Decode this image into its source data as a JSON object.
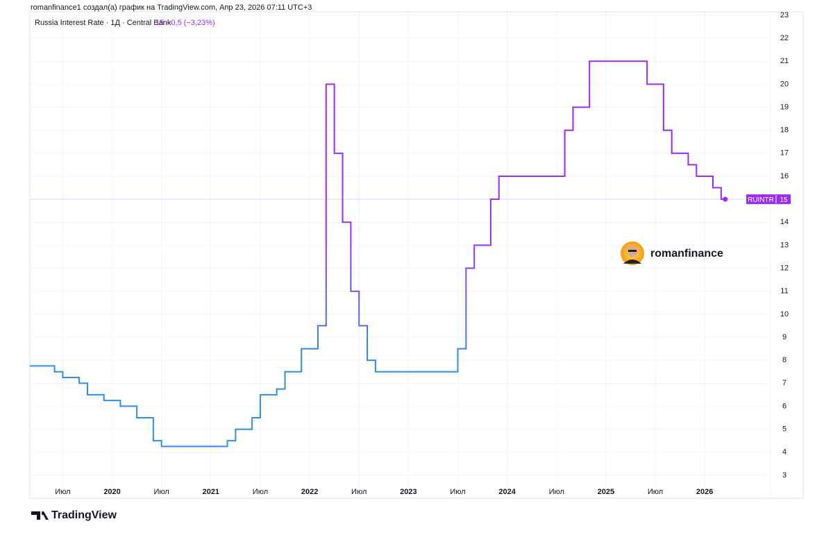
{
  "attribution": "romanfinance1 создал(а) график на TradingView.com, Апр 23, 2026 07:11 UTC+3",
  "watermark": "romanfinance",
  "brand": "TradingView",
  "chart_data": {
    "type": "line",
    "step": true,
    "title": "Russia Interest Rate · 1Д · Central Bank",
    "change_label": "−0,5 (−3,23%)",
    "symbol": "RUINTR",
    "x": [
      "2019-03",
      "2019-06",
      "2019-07",
      "2019-09",
      "2019-10",
      "2019-12",
      "2020-02",
      "2020-04",
      "2020-06",
      "2020-07",
      "2021-03",
      "2021-04",
      "2021-06",
      "2021-07",
      "2021-09",
      "2021-10",
      "2021-12",
      "2022-02",
      "2022-03",
      "2022-04",
      "2022-05",
      "2022-06",
      "2022-07",
      "2022-08",
      "2022-09",
      "2023-07",
      "2023-08",
      "2023-09",
      "2023-11",
      "2023-12",
      "2024-08",
      "2024-09",
      "2024-11",
      "2025-06",
      "2025-08",
      "2025-09",
      "2025-11",
      "2025-12",
      "2026-02",
      "2026-03"
    ],
    "series": [
      {
        "name": "RUINTR",
        "color": "#9c2cf0",
        "gradient_from": "#2a8fe8",
        "values": [
          7.75,
          7.5,
          7.25,
          7,
          6.5,
          6.25,
          6,
          5.5,
          4.5,
          4.25,
          4.5,
          5,
          5.5,
          6.5,
          6.75,
          7.5,
          8.5,
          9.5,
          20,
          17,
          14,
          11,
          9.5,
          8,
          7.5,
          8.5,
          12,
          13,
          15,
          16,
          18,
          19,
          21,
          20,
          18,
          17,
          16.5,
          16,
          15.5,
          15
        ]
      }
    ],
    "xlim": [
      "2019-03",
      "2026-09"
    ],
    "xticks": [
      {
        "value": "2019-07",
        "label": "Июл"
      },
      {
        "value": "2020-01",
        "label": "2020"
      },
      {
        "value": "2020-07",
        "label": "Июл"
      },
      {
        "value": "2021-01",
        "label": "2021"
      },
      {
        "value": "2021-07",
        "label": "Июл"
      },
      {
        "value": "2022-01",
        "label": "2022"
      },
      {
        "value": "2022-07",
        "label": "Июл"
      },
      {
        "value": "2023-01",
        "label": "2023"
      },
      {
        "value": "2023-07",
        "label": "Июл"
      },
      {
        "value": "2024-01",
        "label": "2024"
      },
      {
        "value": "2024-07",
        "label": "Июл"
      },
      {
        "value": "2025-01",
        "label": "2025"
      },
      {
        "value": "2025-07",
        "label": "Июл"
      },
      {
        "value": "2026-01",
        "label": "2026"
      }
    ],
    "ylim": [
      2,
      23.15
    ],
    "yticks": [
      3,
      4,
      5,
      6,
      7,
      8,
      9,
      10,
      11,
      12,
      13,
      14,
      15,
      16,
      17,
      18,
      19,
      20,
      21,
      22,
      23
    ],
    "grid": true
  }
}
